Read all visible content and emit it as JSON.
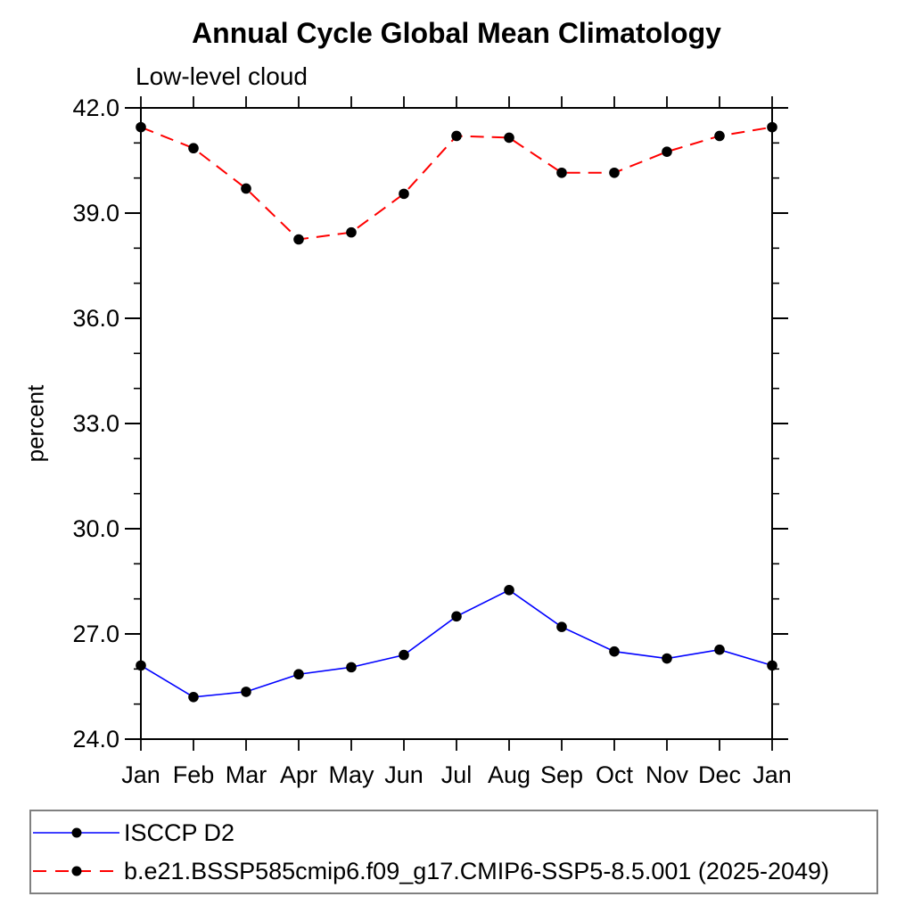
{
  "page": {
    "background": "#ffffff"
  },
  "chart_data": {
    "type": "line",
    "title": "Annual Cycle Global Mean Climatology",
    "subtitle": "Low-level cloud",
    "ylabel": "percent",
    "categories": [
      "Jan",
      "Feb",
      "Mar",
      "Apr",
      "May",
      "Jun",
      "Jul",
      "Aug",
      "Sep",
      "Oct",
      "Nov",
      "Dec",
      "Jan"
    ],
    "ylim": [
      24.0,
      42.0
    ],
    "yticks_major": {
      "values": [
        24,
        27,
        30,
        33,
        36,
        39,
        42
      ],
      "labels": [
        "24.0",
        "27.0",
        "30.0",
        "33.0",
        "36.0",
        "39.0",
        "42.0"
      ]
    },
    "ytick_minor_step": 1.0,
    "grid": false,
    "legend_position": "bottom-left",
    "axis_color": "#000000",
    "legend_border_color": "#808080",
    "series": [
      {
        "id": "isccp-d2",
        "name": "ISCCP D2",
        "color": "#0000ff",
        "line_style": "solid",
        "marker": "filled-circle",
        "marker_color": "#000000",
        "values": [
          26.1,
          25.2,
          25.35,
          25.85,
          26.05,
          26.4,
          27.5,
          28.25,
          27.2,
          26.5,
          26.3,
          26.55,
          26.1
        ]
      },
      {
        "id": "cmip6-ssp585",
        "name": "b.e21.BSSP585cmip6.f09_g17.CMIP6-SSP5-8.5.001 (2025-2049)",
        "color": "#ff0000",
        "line_style": "dashed",
        "marker": "filled-circle",
        "marker_color": "#000000",
        "values": [
          41.45,
          40.85,
          39.7,
          38.25,
          38.45,
          39.55,
          41.2,
          41.15,
          40.15,
          40.15,
          40.75,
          41.2,
          41.45
        ]
      }
    ]
  }
}
